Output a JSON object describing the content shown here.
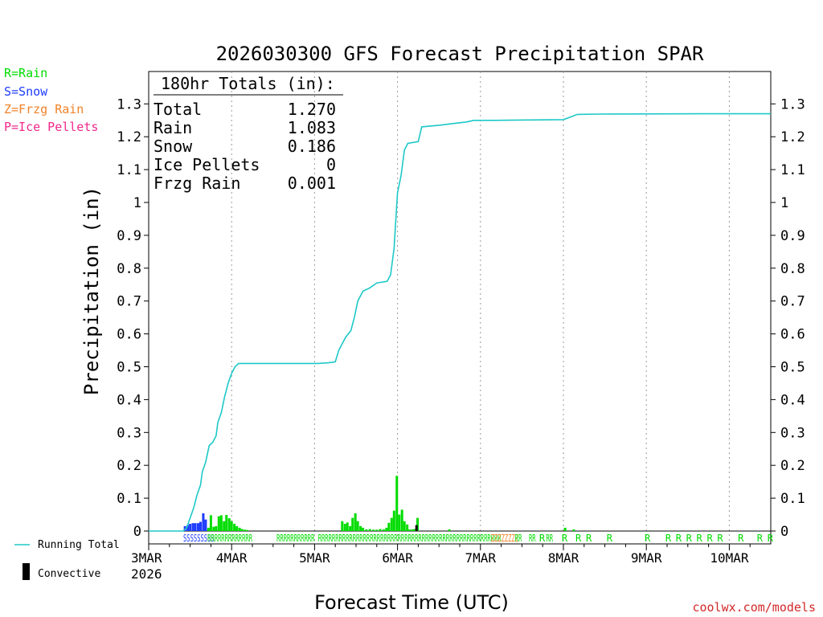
{
  "chart_data": {
    "type": "bar+line",
    "title": "2026030300 GFS Forecast Precipitation SPAR",
    "ylabel": "Precipitation (in)",
    "xlabel": "Forecast Time (UTC)",
    "credit": "coolwx.com/models",
    "ylim": [
      0,
      1.4
    ],
    "xlim_hours": [
      0,
      180
    ],
    "y_ticks": [
      "0",
      "0.1",
      "0.2",
      "0.3",
      "0.4",
      "0.5",
      "0.6",
      "0.7",
      "0.8",
      "0.9",
      "1",
      "1.1",
      "1.2",
      "1.3"
    ],
    "x_ticks": [
      {
        "label": "3MAR",
        "hour": 0
      },
      {
        "label": "4MAR",
        "hour": 24
      },
      {
        "label": "5MAR",
        "hour": 48
      },
      {
        "label": "6MAR",
        "hour": 72
      },
      {
        "label": "7MAR",
        "hour": 96
      },
      {
        "label": "8MAR",
        "hour": 120
      },
      {
        "label": "9MAR",
        "hour": 144
      },
      {
        "label": "10MAR",
        "hour": 168
      }
    ],
    "x_year_label": "2026",
    "legend_types": [
      {
        "label": "R=Rain",
        "color": "#00dc00"
      },
      {
        "label": "S=Snow",
        "color": "#1e3cff"
      },
      {
        "label": "Z=Frzg Rain",
        "color": "#f08228"
      },
      {
        "label": "P=Ice Pellets",
        "color": "#f0288c"
      }
    ],
    "legend_series": {
      "running_total": "Running Total",
      "convective": "Convective"
    },
    "totals": {
      "header": "180hr Totals (in):",
      "rows": [
        {
          "label": "Total",
          "value": "1.270"
        },
        {
          "label": "Rain",
          "value": "1.083"
        },
        {
          "label": "Snow",
          "value": "0.186"
        },
        {
          "label": "Ice Pellets",
          "value": "0"
        },
        {
          "label": "Frzg Rain",
          "value": "0.001"
        }
      ]
    },
    "running_total": [
      [
        0,
        0
      ],
      [
        10,
        0
      ],
      [
        11,
        0.01
      ],
      [
        12,
        0.04
      ],
      [
        13,
        0.07
      ],
      [
        14,
        0.11
      ],
      [
        15,
        0.14
      ],
      [
        15.5,
        0.18
      ],
      [
        16.5,
        0.21
      ],
      [
        17.5,
        0.26
      ],
      [
        18.5,
        0.27
      ],
      [
        19.5,
        0.29
      ],
      [
        20,
        0.33
      ],
      [
        21,
        0.36
      ],
      [
        22,
        0.41
      ],
      [
        23,
        0.45
      ],
      [
        24,
        0.48
      ],
      [
        25,
        0.5
      ],
      [
        26,
        0.51
      ],
      [
        28,
        0.51
      ],
      [
        40,
        0.51
      ],
      [
        49,
        0.51
      ],
      [
        52,
        0.512
      ],
      [
        54,
        0.515
      ],
      [
        55,
        0.55
      ],
      [
        57,
        0.59
      ],
      [
        58.5,
        0.61
      ],
      [
        59.5,
        0.65
      ],
      [
        60.5,
        0.7
      ],
      [
        62,
        0.73
      ],
      [
        64,
        0.74
      ],
      [
        66,
        0.755
      ],
      [
        69,
        0.76
      ],
      [
        70,
        0.78
      ],
      [
        71,
        0.86
      ],
      [
        72,
        1.03
      ],
      [
        73,
        1.08
      ],
      [
        74,
        1.16
      ],
      [
        75,
        1.18
      ],
      [
        78,
        1.185
      ],
      [
        79,
        1.23
      ],
      [
        84,
        1.235
      ],
      [
        88,
        1.24
      ],
      [
        92,
        1.245
      ],
      [
        94,
        1.25
      ],
      [
        100,
        1.25
      ],
      [
        120,
        1.252
      ],
      [
        122,
        1.26
      ],
      [
        124,
        1.268
      ],
      [
        130,
        1.269
      ],
      [
        160,
        1.27
      ],
      [
        180,
        1.27
      ]
    ],
    "bars": [
      {
        "hour": 10.5,
        "value": 0.015,
        "type": "S"
      },
      {
        "hour": 11.3,
        "value": 0.018,
        "type": "S"
      },
      {
        "hour": 12.0,
        "value": 0.022,
        "type": "S"
      },
      {
        "hour": 12.8,
        "value": 0.024,
        "type": "S"
      },
      {
        "hour": 13.5,
        "value": 0.024,
        "type": "S"
      },
      {
        "hour": 14.3,
        "value": 0.024,
        "type": "S"
      },
      {
        "hour": 15.0,
        "value": 0.028,
        "type": "S"
      },
      {
        "hour": 15.8,
        "value": 0.054,
        "type": "S"
      },
      {
        "hour": 16.5,
        "value": 0.035,
        "type": "S"
      },
      {
        "hour": 17.3,
        "value": 0.01,
        "type": "R"
      },
      {
        "hour": 18.0,
        "value": 0.048,
        "type": "R"
      },
      {
        "hour": 18.8,
        "value": 0.013,
        "type": "R"
      },
      {
        "hour": 19.5,
        "value": 0.015,
        "type": "R"
      },
      {
        "hour": 20.3,
        "value": 0.045,
        "type": "R"
      },
      {
        "hour": 21.0,
        "value": 0.048,
        "type": "R"
      },
      {
        "hour": 21.8,
        "value": 0.03,
        "type": "R"
      },
      {
        "hour": 22.5,
        "value": 0.049,
        "type": "R"
      },
      {
        "hour": 23.3,
        "value": 0.039,
        "type": "R"
      },
      {
        "hour": 24.0,
        "value": 0.03,
        "type": "R"
      },
      {
        "hour": 24.8,
        "value": 0.022,
        "type": "R"
      },
      {
        "hour": 25.5,
        "value": 0.015,
        "type": "R"
      },
      {
        "hour": 26.3,
        "value": 0.01,
        "type": "R"
      },
      {
        "hour": 27.0,
        "value": 0.006,
        "type": "R"
      },
      {
        "hour": 27.8,
        "value": 0.004,
        "type": "R"
      },
      {
        "hour": 28.5,
        "value": 0.003,
        "type": "R"
      },
      {
        "hour": 56.0,
        "value": 0.03,
        "type": "R"
      },
      {
        "hour": 56.8,
        "value": 0.022,
        "type": "R"
      },
      {
        "hour": 57.5,
        "value": 0.026,
        "type": "R"
      },
      {
        "hour": 58.3,
        "value": 0.015,
        "type": "R"
      },
      {
        "hour": 59.0,
        "value": 0.04,
        "type": "R"
      },
      {
        "hour": 59.8,
        "value": 0.054,
        "type": "R"
      },
      {
        "hour": 60.5,
        "value": 0.03,
        "type": "R"
      },
      {
        "hour": 61.3,
        "value": 0.015,
        "type": "R"
      },
      {
        "hour": 62.0,
        "value": 0.01,
        "type": "R"
      },
      {
        "hour": 63.0,
        "value": 0.005,
        "type": "R"
      },
      {
        "hour": 64.0,
        "value": 0.006,
        "type": "R"
      },
      {
        "hour": 65.0,
        "value": 0.004,
        "type": "R"
      },
      {
        "hour": 66.0,
        "value": 0.004,
        "type": "R"
      },
      {
        "hour": 67.0,
        "value": 0.006,
        "type": "R"
      },
      {
        "hour": 68.0,
        "value": 0.005,
        "type": "R"
      },
      {
        "hour": 68.8,
        "value": 0.01,
        "type": "R"
      },
      {
        "hour": 69.5,
        "value": 0.025,
        "type": "R"
      },
      {
        "hour": 70.3,
        "value": 0.04,
        "type": "R"
      },
      {
        "hour": 71.0,
        "value": 0.062,
        "type": "R"
      },
      {
        "hour": 71.8,
        "value": 0.168,
        "type": "R"
      },
      {
        "hour": 72.5,
        "value": 0.05,
        "type": "R"
      },
      {
        "hour": 73.3,
        "value": 0.065,
        "type": "R"
      },
      {
        "hour": 74.0,
        "value": 0.03,
        "type": "R"
      },
      {
        "hour": 74.8,
        "value": 0.02,
        "type": "R"
      },
      {
        "hour": 75.5,
        "value": 0.005,
        "type": "R"
      },
      {
        "hour": 76.3,
        "value": 0.005,
        "type": "R"
      },
      {
        "hour": 77.0,
        "value": 0.006,
        "type": "R"
      },
      {
        "hour": 77.8,
        "value": 0.04,
        "type": "R"
      },
      {
        "hour": 87.0,
        "value": 0.005,
        "type": "R"
      },
      {
        "hour": 120.5,
        "value": 0.01,
        "type": "R"
      },
      {
        "hour": 123.0,
        "value": 0.005,
        "type": "R"
      }
    ],
    "convective": [
      {
        "hour": 77.5,
        "value": 0.018
      }
    ],
    "type_strip": [
      {
        "text": "SSSSSSSSS",
        "type": "S",
        "hour": 10.0
      },
      {
        "text": "RRRRRRRRRRRRR",
        "type": "R",
        "hour": 17.0
      },
      {
        "text": "RRRRRRRRRRR",
        "type": "R",
        "hour": 37.0
      },
      {
        "text": "RRRRRRRRRRRRRRRRRRRRRRRRRRRRRRRRRRRRRRRRRRRRRRRRRRRRR",
        "type": "R",
        "hour": 49.0
      },
      {
        "text": "ZZZZZZZZ",
        "type": "Z",
        "hour": 99.0
      },
      {
        "text": "RR",
        "type": "R",
        "hour": 106.0
      },
      {
        "text": "RR",
        "type": "R",
        "hour": 110.0
      },
      {
        "text": "R",
        "type": "R",
        "hour": 113.0
      },
      {
        "text": "RR",
        "type": "R",
        "hour": 115.0
      },
      {
        "text": "R",
        "type": "R",
        "hour": 119.5
      },
      {
        "text": "R",
        "type": "R",
        "hour": 123.5
      },
      {
        "text": "R",
        "type": "R",
        "hour": 126.5
      },
      {
        "text": "R",
        "type": "R",
        "hour": 132.5
      },
      {
        "text": "R",
        "type": "R",
        "hour": 143.5
      },
      {
        "text": "R",
        "type": "R",
        "hour": 149.5
      },
      {
        "text": "R",
        "type": "R",
        "hour": 152.5
      },
      {
        "text": "R",
        "type": "R",
        "hour": 155.5
      },
      {
        "text": "R",
        "type": "R",
        "hour": 158.5
      },
      {
        "text": "R",
        "type": "R",
        "hour": 161.5
      },
      {
        "text": "R",
        "type": "R",
        "hour": 164.5
      },
      {
        "text": "R",
        "type": "R",
        "hour": 170.5
      },
      {
        "text": "R",
        "type": "R",
        "hour": 176.0
      },
      {
        "text": "R",
        "type": "R",
        "hour": 179.0
      }
    ],
    "colors": {
      "running_total": "#1ec8c8",
      "rain": "#00dc00",
      "snow": "#1e3cff",
      "freezing_rain": "#f08228",
      "ice_pellets": "#f0288c",
      "convective": "#000000"
    }
  }
}
